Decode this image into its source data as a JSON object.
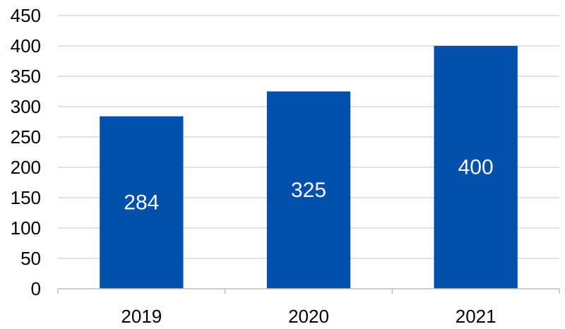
{
  "chart_data": {
    "type": "bar",
    "title": "",
    "xlabel": "",
    "ylabel": "",
    "categories": [
      "2019",
      "2020",
      "2021"
    ],
    "values": [
      284,
      325,
      400
    ],
    "data_labels": [
      "284",
      "325",
      "400"
    ],
    "ylim": [
      0,
      450
    ],
    "y_ticks": [
      0,
      50,
      100,
      150,
      200,
      250,
      300,
      350,
      400,
      450
    ],
    "y_tick_labels": [
      "0",
      "50",
      "100",
      "150",
      "200",
      "250",
      "300",
      "350",
      "400",
      "450"
    ],
    "grid": true,
    "legend": "none",
    "colors": {
      "bar": "#0050AB",
      "grid": "#D9D9D9",
      "axis": "#BFBFBF",
      "data_label": "#FFFFFF",
      "tick_label": "#000000"
    }
  }
}
